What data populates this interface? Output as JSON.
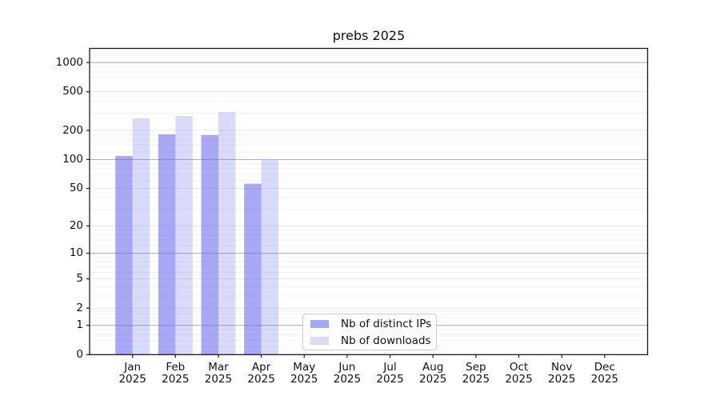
{
  "figure": {
    "title": "prebs 2025",
    "background": "#ffffff"
  },
  "y_axis": {
    "tick_values": [
      1000,
      500,
      200,
      100,
      50,
      20,
      10,
      5,
      2,
      1,
      0
    ]
  },
  "x_axis": {
    "months": [
      "Jan",
      "Feb",
      "Mar",
      "Apr",
      "May",
      "Jun",
      "Jul",
      "Aug",
      "Sep",
      "Oct",
      "Nov",
      "Dec"
    ],
    "year": "2025"
  },
  "legend": {
    "items": [
      {
        "label": "Nb of distinct IPs",
        "color": "rgba(102,102,238,0.57)",
        "color_hex": "#a7a7f5"
      },
      {
        "label": "Nb of downloads",
        "color": "rgba(102,102,238,0.24)",
        "color_hex": "#dadafa"
      }
    ]
  },
  "colors": {
    "grid_decade": "#b3b3b3",
    "grid_major": "#e8e8e8",
    "grid_minor": "#f2f2f2",
    "spine": "#1a1a1a"
  },
  "chart_data": {
    "type": "bar",
    "title": "prebs 2025",
    "categories": [
      "Jan 2025",
      "Feb 2025",
      "Mar 2025",
      "Apr 2025",
      "May 2025",
      "Jun 2025",
      "Jul 2025",
      "Aug 2025",
      "Sep 2025",
      "Oct 2025",
      "Nov 2025",
      "Dec 2025"
    ],
    "series": [
      {
        "name": "Nb of distinct IPs",
        "values": [
          109,
          182,
          179,
          56,
          null,
          null,
          null,
          null,
          null,
          null,
          null,
          null
        ]
      },
      {
        "name": "Nb of downloads",
        "values": [
          266,
          282,
          309,
          99,
          null,
          null,
          null,
          null,
          null,
          null,
          null,
          null
        ]
      }
    ],
    "xlabel": "",
    "ylabel": "",
    "y_scale": "log1p (symlog-like: 0,1,2,5,10,20,50,100,200,500,1000)",
    "y_ticks": [
      0,
      1,
      2,
      5,
      10,
      20,
      50,
      100,
      200,
      500,
      1000
    ],
    "ylim": [
      0,
      1420
    ],
    "grid": true,
    "legend_position": "lower center"
  }
}
